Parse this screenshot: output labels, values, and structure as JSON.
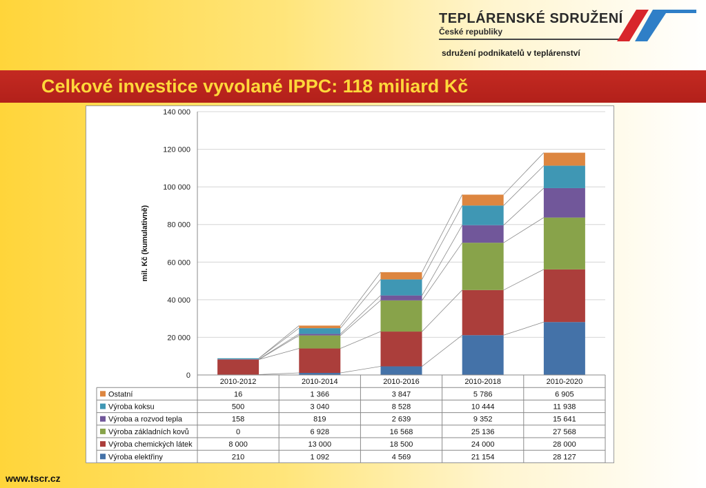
{
  "header": {
    "logo_title": "TEPLÁRENSKÉ SDRUŽENÍ",
    "logo_subtitle": "České republiky",
    "tagline": "sdružení podnikatelů v teplárenství"
  },
  "slide": {
    "title": "Celkové investice vyvolané IPPC: 118 miliard Kč"
  },
  "footer": {
    "url": "www.tscr.cz"
  },
  "colors": {
    "banner": "#b9241d",
    "title_text": "#ffd83a",
    "logo_red": "#d8262b",
    "logo_blue": "#2f7fc7"
  },
  "chart_data": {
    "type": "bar",
    "stacked": true,
    "categories": [
      "2010-2012",
      "2010-2014",
      "2010-2016",
      "2010-2018",
      "2010-2020"
    ],
    "ylabel": "mil. Kč (kumulativně)",
    "ylim": [
      0,
      140000
    ],
    "yticks": [
      0,
      20000,
      40000,
      60000,
      80000,
      100000,
      120000,
      140000
    ],
    "ytick_labels": [
      "0",
      "20 000",
      "40 000",
      "60 000",
      "80 000",
      "100 000",
      "120 000",
      "140 000"
    ],
    "grid": true,
    "legend": "data-table-below",
    "series": [
      {
        "name": "Výroba elektřiny",
        "color": "#4472a8",
        "values": [
          210,
          1092,
          4569,
          21154,
          28127
        ],
        "labels": [
          "210",
          "1 092",
          "4 569",
          "21 154",
          "28 127"
        ]
      },
      {
        "name": "Výroba chemických látek",
        "color": "#ab3e3b",
        "values": [
          8000,
          13000,
          18500,
          24000,
          28000
        ],
        "labels": [
          "8 000",
          "13 000",
          "18 500",
          "24 000",
          "28 000"
        ]
      },
      {
        "name": "Výroba základních kovů",
        "color": "#88a34a",
        "values": [
          0,
          6928,
          16568,
          25136,
          27568
        ],
        "labels": [
          "0",
          "6 928",
          "16 568",
          "25 136",
          "27 568"
        ]
      },
      {
        "name": "Výroba a rozvod tepla",
        "color": "#71579a",
        "values": [
          158,
          819,
          2639,
          9352,
          15641
        ],
        "labels": [
          "158",
          "819",
          "2 639",
          "9 352",
          "15 641"
        ]
      },
      {
        "name": "Výroba koksu",
        "color": "#3f97b4",
        "values": [
          500,
          3040,
          8528,
          10444,
          11938
        ],
        "labels": [
          "500",
          "3 040",
          "8 528",
          "10 444",
          "11 938"
        ]
      },
      {
        "name": "Ostatní",
        "color": "#dd8640",
        "values": [
          16,
          1366,
          3847,
          5786,
          6905
        ],
        "labels": [
          "16",
          "1 366",
          "3 847",
          "5 786",
          "6 905"
        ]
      }
    ]
  }
}
